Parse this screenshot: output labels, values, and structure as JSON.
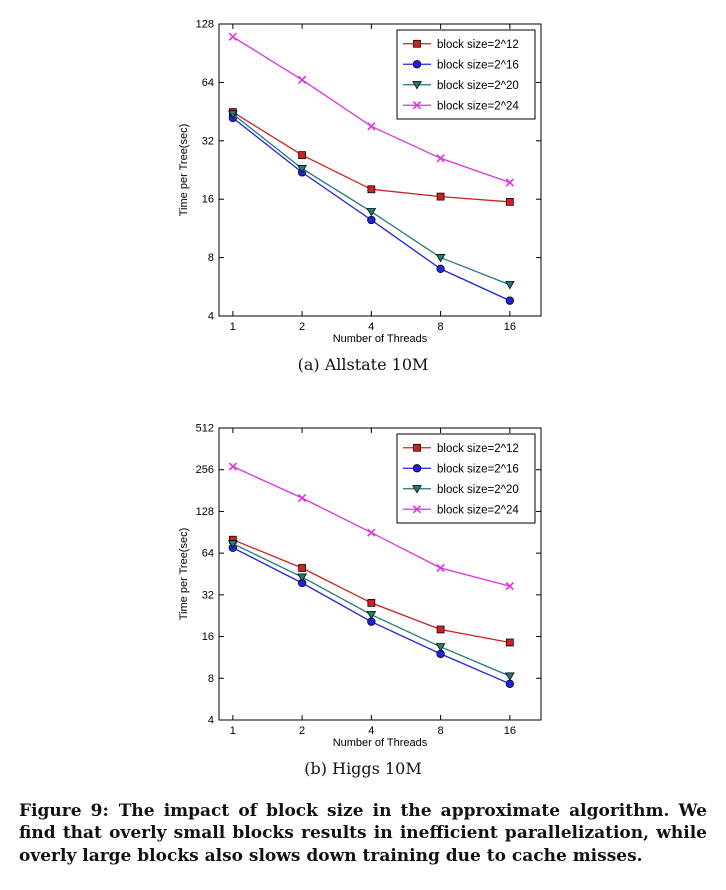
{
  "figure": {
    "caption_label": "Figure 9:",
    "caption_text": "The impact of block size in the approximate algorithm. We find that overly small blocks results in inefficient parallelization, while overly large blocks also slows down training due to cache misses.",
    "subcaptions": [
      "(a) Allstate 10M",
      "(b) Higgs 10M"
    ]
  },
  "chart_data": [
    {
      "type": "line",
      "title": "(a) Allstate 10M",
      "xlabel": "Number of Threads",
      "ylabel": "Time per Tree(sec)",
      "xscale": "log2",
      "yscale": "log2",
      "x": [
        1,
        2,
        4,
        8,
        16
      ],
      "ylim": [
        4,
        128
      ],
      "yticks": [
        4,
        8,
        16,
        32,
        64,
        128
      ],
      "legend_position": "top-right-inside",
      "grid": false,
      "series": [
        {
          "name": "block size=2^12",
          "marker": "square",
          "color": "#cc2222",
          "values": [
            45,
            27,
            18,
            16.5,
            15.5
          ]
        },
        {
          "name": "block size=2^16",
          "marker": "circle",
          "color": "#2222dd",
          "values": [
            42,
            22,
            12.5,
            7,
            4.8
          ]
        },
        {
          "name": "block size=2^20",
          "marker": "triangle-down",
          "color": "#227a7a",
          "values": [
            44,
            23,
            13.8,
            8,
            5.8
          ]
        },
        {
          "name": "block size=2^24",
          "marker": "x",
          "color": "#dd33dd",
          "values": [
            110,
            66,
            38,
            26,
            19.5
          ]
        }
      ]
    },
    {
      "type": "line",
      "title": "(b) Higgs 10M",
      "xlabel": "Number of Threads",
      "ylabel": "Time per Tree(sec)",
      "xscale": "log2",
      "yscale": "log2",
      "x": [
        1,
        2,
        4,
        8,
        16
      ],
      "ylim": [
        4,
        512
      ],
      "yticks": [
        4,
        8,
        16,
        32,
        64,
        128,
        256,
        512
      ],
      "legend_position": "top-right-inside",
      "grid": false,
      "series": [
        {
          "name": "block size=2^12",
          "marker": "square",
          "color": "#cc2222",
          "values": [
            80,
            50,
            28,
            18,
            14.5
          ]
        },
        {
          "name": "block size=2^16",
          "marker": "circle",
          "color": "#2222dd",
          "values": [
            70,
            39,
            20.5,
            12,
            7.3
          ]
        },
        {
          "name": "block size=2^20",
          "marker": "triangle-down",
          "color": "#227a7a",
          "values": [
            75,
            43,
            23,
            13.5,
            8.3
          ]
        },
        {
          "name": "block size=2^24",
          "marker": "x",
          "color": "#dd33dd",
          "values": [
            270,
            160,
            90,
            50,
            37
          ]
        }
      ]
    }
  ]
}
